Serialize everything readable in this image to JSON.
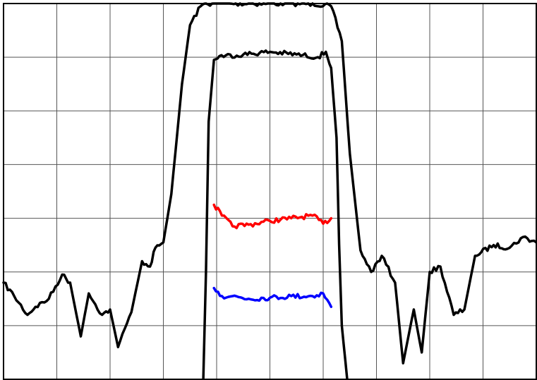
{
  "chart_data": {
    "type": "line",
    "title": "",
    "xlabel": "",
    "ylabel": "",
    "xlim": [
      0,
      10
    ],
    "ylim": [
      0,
      7
    ],
    "grid": true,
    "grid_divisions": {
      "x": 10,
      "y": 7
    },
    "colors": {
      "background": "#ffffff",
      "grid": "#555555",
      "frame": "#000000"
    },
    "series": [
      {
        "color": "#000000",
        "x": [
          0,
          0.2,
          0.45,
          0.6,
          0.85,
          1.1,
          1.25,
          1.45,
          1.6,
          1.85,
          2.0,
          2.15,
          2.4,
          2.6,
          2.75,
          2.85,
          3.0,
          3.15,
          3.35,
          3.5,
          3.7,
          3.8,
          3.95,
          4.2,
          4.6,
          5.0,
          5.4,
          5.8,
          6.15,
          6.35,
          6.5,
          6.7,
          6.9,
          7.1,
          7.35,
          7.5,
          7.7,
          7.85,
          8.0,
          8.2,
          8.45,
          8.65,
          8.85,
          9.2,
          9.5,
          9.75,
          10
        ],
        "y": [
          1.8,
          1.55,
          1.2,
          1.35,
          1.5,
          1.95,
          1.8,
          0.8,
          1.6,
          1.2,
          1.3,
          0.6,
          1.25,
          2.2,
          2.1,
          2.45,
          2.55,
          3.45,
          5.5,
          6.6,
          6.95,
          7.0,
          7.0,
          7.0,
          7.0,
          7.0,
          7.0,
          7.0,
          6.95,
          6.3,
          4.2,
          2.4,
          2.0,
          2.3,
          1.8,
          0.3,
          1.3,
          0.5,
          2.0,
          2.1,
          1.2,
          1.3,
          2.3,
          2.5,
          2.45,
          2.65,
          2.55
        ]
      },
      {
        "color": "#000000",
        "x": [
          3.75,
          3.8,
          3.85,
          3.95,
          4.05,
          4.5,
          5.0,
          5.5,
          5.9,
          6.05,
          6.15,
          6.25,
          6.3,
          6.35,
          6.45
        ],
        "y": [
          0,
          2.0,
          4.8,
          5.95,
          6.02,
          6.05,
          6.1,
          6.05,
          6.0,
          6.1,
          5.8,
          4.5,
          2.5,
          1.0,
          0
        ]
      },
      {
        "color": "#ff0000",
        "x": [
          3.95,
          4.1,
          4.3,
          4.6,
          5.0,
          5.4,
          5.8,
          6.0,
          6.15
        ],
        "y": [
          3.25,
          3.05,
          2.85,
          2.88,
          2.95,
          3.0,
          3.05,
          2.9,
          3.0
        ]
      },
      {
        "color": "#0000ff",
        "x": [
          3.95,
          4.1,
          4.3,
          4.6,
          5.0,
          5.4,
          5.8,
          6.0,
          6.15
        ],
        "y": [
          1.7,
          1.55,
          1.55,
          1.5,
          1.52,
          1.55,
          1.55,
          1.6,
          1.35
        ]
      }
    ]
  }
}
